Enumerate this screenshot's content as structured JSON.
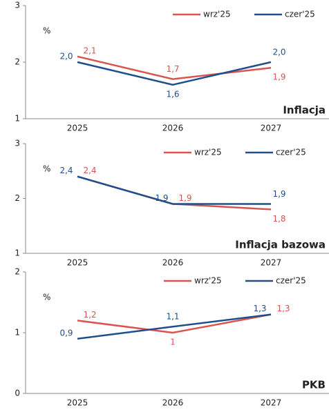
{
  "chart_data": [
    {
      "type": "line",
      "title": "Inflacja",
      "unit": "%",
      "categories": [
        "2025",
        "2026",
        "2027"
      ],
      "series": [
        {
          "name": "wrz'25",
          "color": "#d9534f",
          "values": [
            2.1,
            1.7,
            1.9
          ],
          "value_labels": [
            "2,1",
            "1,7",
            "1,9"
          ]
        },
        {
          "name": "czer'25",
          "color": "#1f4e8c",
          "values": [
            2.0,
            1.6,
            2.0
          ],
          "value_labels": [
            "2,0",
            "1,6",
            "2,0"
          ]
        }
      ],
      "ylim": [
        1,
        3
      ],
      "yticks": [
        1,
        2,
        3
      ],
      "legend": "top-right"
    },
    {
      "type": "line",
      "title": "Inflacja bazowa",
      "unit": "%",
      "categories": [
        "2025",
        "2026",
        "2027"
      ],
      "series": [
        {
          "name": "wrz'25",
          "color": "#d9534f",
          "values": [
            2.4,
            1.9,
            1.8
          ],
          "value_labels": [
            "2,4",
            "1,9",
            "1,8"
          ]
        },
        {
          "name": "czer'25",
          "color": "#1f4e8c",
          "values": [
            2.4,
            1.9,
            1.9
          ],
          "value_labels": [
            "2,4",
            "1,9",
            "1,9"
          ]
        }
      ],
      "ylim": [
        1,
        3
      ],
      "yticks": [
        1,
        2,
        3
      ],
      "legend": "top-right"
    },
    {
      "type": "line",
      "title": "PKB",
      "unit": "%",
      "categories": [
        "2025",
        "2026",
        "2027"
      ],
      "series": [
        {
          "name": "wrz'25",
          "color": "#d9534f",
          "values": [
            1.2,
            1.0,
            1.3
          ],
          "value_labels": [
            "1,2",
            "1",
            "1,3"
          ]
        },
        {
          "name": "czer'25",
          "color": "#1f4e8c",
          "values": [
            0.9,
            1.1,
            1.3
          ],
          "value_labels": [
            "0,9",
            "1,1",
            "1,3"
          ]
        }
      ],
      "ylim": [
        0,
        2
      ],
      "yticks": [
        0,
        1,
        2
      ],
      "legend": "top-right"
    }
  ]
}
